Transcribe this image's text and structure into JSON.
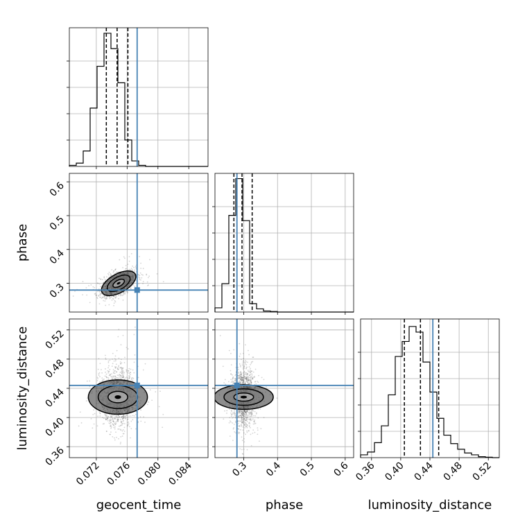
{
  "chart_data": {
    "type": "corner",
    "parameters": [
      "geocent_time",
      "phase",
      "luminosity_distance"
    ],
    "truths": {
      "geocent_time": 0.0773,
      "phase": 0.28,
      "luminosity_distance": 0.444
    },
    "colors": {
      "truth": "#4682b4",
      "hist": "#000000",
      "grid": "#b0b0b0",
      "points": "#555555"
    },
    "grid": true,
    "ranges": {
      "geocent_time": [
        0.0685,
        0.0865
      ],
      "phase": [
        0.215,
        0.625
      ],
      "luminosity_distance": [
        0.345,
        0.535
      ]
    },
    "ticks": {
      "geocent_time": {
        "values": [
          0.072,
          0.076,
          0.08,
          0.084
        ],
        "labels": [
          "0.072",
          "0.076",
          "0.080",
          "0.084"
        ]
      },
      "phase": {
        "values": [
          0.3,
          0.4,
          0.5,
          0.6
        ],
        "labels": [
          "0.3",
          "0.4",
          "0.5",
          "0.6"
        ]
      },
      "luminosity_distance": {
        "values": [
          0.36,
          0.4,
          0.44,
          0.48,
          0.52
        ],
        "labels": [
          "0.36",
          "0.40",
          "0.44",
          "0.48",
          "0.52"
        ]
      }
    },
    "quantiles": {
      "geocent_time": [
        0.0733,
        0.0747,
        0.0761
      ],
      "phase": [
        0.271,
        0.295,
        0.325
      ],
      "luminosity_distance": [
        0.405,
        0.427,
        0.452
      ]
    },
    "histograms": {
      "geocent_time": {
        "edges": [
          0.0685,
          0.0694,
          0.0703,
          0.0712,
          0.0721,
          0.073,
          0.0739,
          0.0748,
          0.0757,
          0.0766,
          0.0775,
          0.0784,
          0.0793,
          0.0802,
          0.0811,
          0.082,
          0.0829,
          0.0838,
          0.0847,
          0.0856,
          0.0865
        ],
        "counts": [
          0.1,
          0.3,
          1.4,
          5.3,
          9.1,
          12.1,
          10.7,
          7.6,
          2.4,
          0.5,
          0.1,
          0,
          0,
          0,
          0,
          0,
          0,
          0,
          0,
          0
        ],
        "ylim": [
          0,
          12.6
        ]
      },
      "phase": {
        "edges": [
          0.215,
          0.2355,
          0.256,
          0.2765,
          0.297,
          0.3175,
          0.338,
          0.3585,
          0.379,
          0.3995,
          0.42,
          0.4405,
          0.461,
          0.4815,
          0.502,
          0.5225,
          0.543,
          0.5635,
          0.584,
          0.6045,
          0.625
        ],
        "counts": [
          0.4,
          2.7,
          9.2,
          12.7,
          8.7,
          0.8,
          0.3,
          0.1,
          0.05,
          0,
          0,
          0,
          0,
          0,
          0,
          0,
          0,
          0,
          0,
          0
        ],
        "ylim": [
          0,
          13.2
        ]
      },
      "luminosity_distance": {
        "edges": [
          0.345,
          0.3545,
          0.364,
          0.3735,
          0.383,
          0.3925,
          0.402,
          0.4115,
          0.421,
          0.4305,
          0.44,
          0.4495,
          0.459,
          0.4685,
          0.478,
          0.4875,
          0.497,
          0.5065,
          0.516,
          0.5255,
          0.535
        ],
        "counts": [
          0.3,
          0.6,
          1.6,
          3.4,
          6.7,
          10.8,
          12.4,
          14.0,
          13.4,
          10.2,
          7.0,
          4.2,
          2.4,
          1.5,
          0.9,
          0.5,
          0.3,
          0.1,
          0.05,
          0
        ],
        "ylim": [
          0,
          14.8
        ]
      }
    },
    "pairs": [
      {
        "x": "geocent_time",
        "y": "phase",
        "center": [
          0.0749,
          0.3
        ],
        "sd": [
          0.0011,
          0.018
        ],
        "corr": 0.55,
        "levels": [
          0.5,
          1.0,
          1.5
        ]
      },
      {
        "x": "geocent_time",
        "y": "luminosity_distance",
        "center": [
          0.0748,
          0.428
        ],
        "sd": [
          0.0011,
          0.02
        ],
        "corr": 0.0,
        "levels": [
          0.5,
          1.0,
          1.5
        ]
      },
      {
        "x": "phase",
        "y": "luminosity_distance",
        "center": [
          0.3,
          0.428
        ],
        "sd": [
          0.018,
          0.02
        ],
        "corr": 0.0,
        "levels": [
          0.5,
          1.0,
          1.5
        ]
      }
    ],
    "xlabels": {
      "geocent_time": "geocent_time",
      "phase": "phase",
      "luminosity_distance": "luminosity_distance"
    },
    "ylabels": {
      "phase": "phase",
      "luminosity_distance": "luminosity_distance"
    }
  }
}
